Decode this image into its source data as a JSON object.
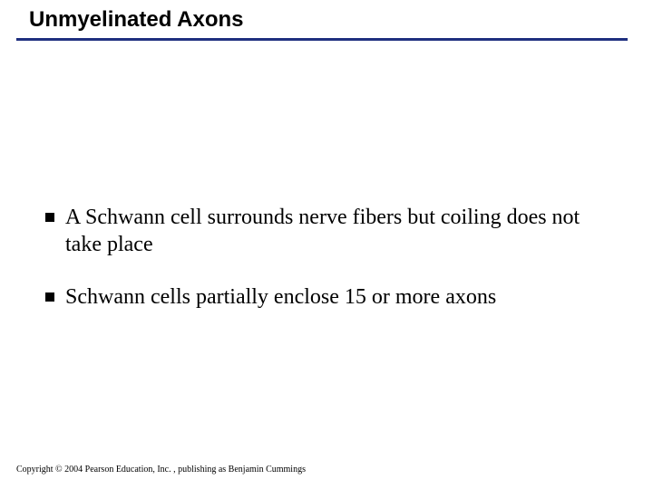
{
  "slide": {
    "title": "Unmyelinated Axons",
    "title_fontsize": 24,
    "title_color": "#000000",
    "rule_color": "#1f2f7f",
    "bullets": [
      {
        "text": "A Schwann cell surrounds nerve fibers but coiling does not take place"
      },
      {
        "text": "Schwann cells partially enclose 15 or more axons"
      }
    ],
    "bullet_fontsize": 24,
    "bullet_color": "#000000",
    "marker_color": "#000000",
    "copyright": "Copyright © 2004 Pearson Education, Inc. , publishing as Benjamin Cummings",
    "copyright_fontsize": 10,
    "copyright_color": "#000000",
    "background_color": "#ffffff"
  }
}
